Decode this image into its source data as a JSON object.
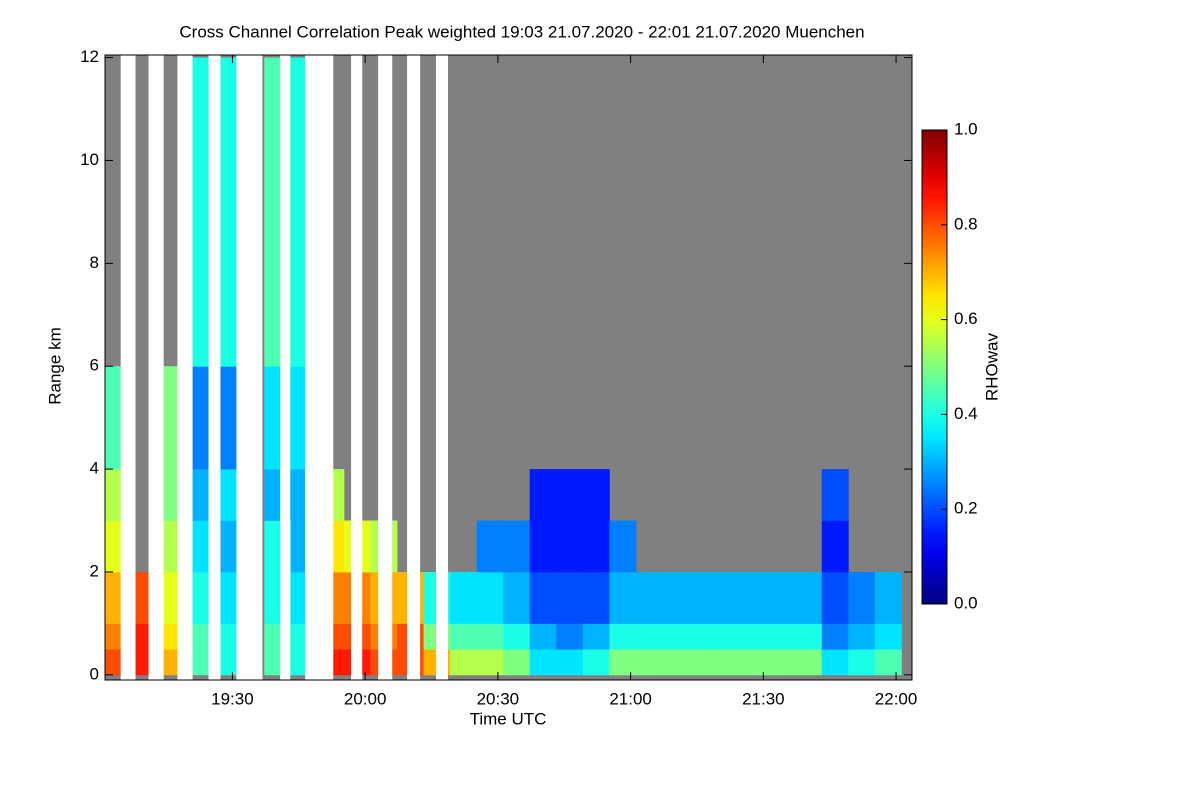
{
  "chart_data": {
    "type": "heatmap",
    "title": "Cross Channel Correlation Peak weighted   19:03 21.07.2020 - 22:01 21.07.2020 Muenchen",
    "xlabel": "Time UTC",
    "ylabel": "Range km",
    "colorbar_label": "RHOwav",
    "colormap": "jet",
    "masked_color": "#808080",
    "xlim": [
      19.02,
      22.06
    ],
    "ylim": [
      -0.1,
      12.05
    ],
    "clim": [
      0,
      1
    ],
    "xticks": [
      {
        "value": 19.5,
        "label": "19:30"
      },
      {
        "value": 20,
        "label": "20:00"
      },
      {
        "value": 20.5,
        "label": "20:30"
      },
      {
        "value": 21,
        "label": "21:00"
      },
      {
        "value": 21.5,
        "label": "21:30"
      },
      {
        "value": 22,
        "label": "22:00"
      }
    ],
    "yticks": [
      0,
      2,
      4,
      6,
      8,
      10,
      12
    ],
    "cticks": [
      {
        "value": 0,
        "label": "0.0"
      },
      {
        "value": 0.2,
        "label": "0.2"
      },
      {
        "value": 0.4,
        "label": "0.4"
      },
      {
        "value": 0.6,
        "label": "0.6"
      },
      {
        "value": 0.8,
        "label": "0.8"
      },
      {
        "value": 1,
        "label": "1.0"
      }
    ],
    "xbins": [
      19.02,
      19.12,
      19.22,
      19.32,
      19.42,
      19.52,
      19.62,
      19.72,
      19.82,
      19.92,
      20.02,
      20.12,
      20.22,
      20.32,
      20.42,
      20.52,
      20.62,
      20.72,
      20.82,
      20.92,
      21.02,
      21.12,
      21.22,
      21.32,
      21.42,
      21.52,
      21.62,
      21.72,
      21.82,
      21.92,
      22.02
    ],
    "ybins": [
      0,
      0.5,
      1,
      2,
      3,
      4,
      6,
      12
    ],
    "z": [
      [
        0.8,
        0.85,
        0.7,
        0.45,
        0.4,
        null,
        0.45,
        0.4,
        0.85,
        0.85,
        0.8,
        0.8,
        0.7,
        0.55,
        0.55,
        0.5,
        0.35,
        0.35,
        0.4,
        0.5,
        0.5,
        0.5,
        0.5,
        0.5,
        0.5,
        0.5,
        0.5,
        0.35,
        0.4,
        0.45
      ],
      [
        0.75,
        0.85,
        0.65,
        0.45,
        0.4,
        null,
        0.45,
        0.4,
        0.8,
        0.8,
        0.75,
        0.8,
        0.5,
        0.45,
        0.45,
        0.4,
        0.3,
        0.25,
        0.3,
        0.4,
        0.4,
        0.4,
        0.4,
        0.4,
        0.4,
        0.4,
        0.4,
        0.25,
        0.3,
        0.35
      ],
      [
        0.7,
        0.8,
        0.6,
        0.4,
        0.35,
        null,
        0.4,
        0.35,
        0.75,
        0.75,
        0.7,
        0.7,
        0.4,
        0.35,
        0.35,
        0.3,
        0.2,
        0.2,
        0.2,
        0.3,
        0.3,
        0.3,
        0.3,
        0.3,
        0.3,
        0.3,
        0.3,
        0.2,
        0.25,
        0.3
      ],
      [
        0.6,
        null,
        0.55,
        0.35,
        0.3,
        null,
        0.4,
        0.3,
        0.65,
        0.6,
        0.55,
        null,
        null,
        null,
        0.25,
        0.25,
        0.15,
        0.15,
        0.15,
        0.25,
        null,
        null,
        null,
        null,
        null,
        null,
        null,
        0.15,
        null,
        null
      ],
      [
        0.55,
        null,
        0.5,
        0.3,
        0.35,
        null,
        0.3,
        0.3,
        0.55,
        null,
        null,
        null,
        null,
        null,
        null,
        null,
        0.15,
        0.15,
        0.15,
        null,
        null,
        null,
        null,
        null,
        null,
        null,
        null,
        0.2,
        null,
        null
      ],
      [
        0.45,
        null,
        0.5,
        0.25,
        0.25,
        null,
        0.35,
        0.35,
        null,
        null,
        null,
        null,
        null,
        null,
        null,
        null,
        null,
        null,
        null,
        null,
        null,
        null,
        null,
        null,
        null,
        null,
        null,
        null,
        null,
        null
      ],
      [
        null,
        null,
        null,
        0.4,
        0.4,
        null,
        0.45,
        0.4,
        null,
        null,
        null,
        null,
        null,
        null,
        null,
        null,
        null,
        null,
        null,
        null,
        null,
        null,
        null,
        null,
        null,
        null,
        null,
        null,
        null,
        null
      ]
    ],
    "gaps": [
      [
        19.079,
        19.135
      ],
      [
        19.184,
        19.241
      ],
      [
        19.293,
        19.35
      ],
      [
        19.41,
        19.455
      ],
      [
        19.515,
        19.613
      ],
      [
        19.68,
        19.718
      ],
      [
        19.774,
        19.88
      ],
      [
        19.947,
        19.989
      ],
      [
        20.049,
        20.102
      ],
      [
        20.158,
        20.207
      ],
      [
        20.267,
        20.312
      ]
    ]
  }
}
